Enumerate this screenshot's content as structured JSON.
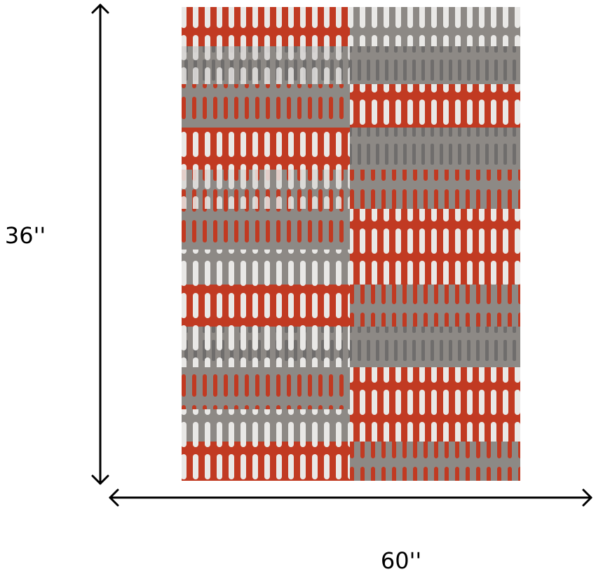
{
  "dimensions": {
    "height": "36''",
    "width": "60''"
  }
}
